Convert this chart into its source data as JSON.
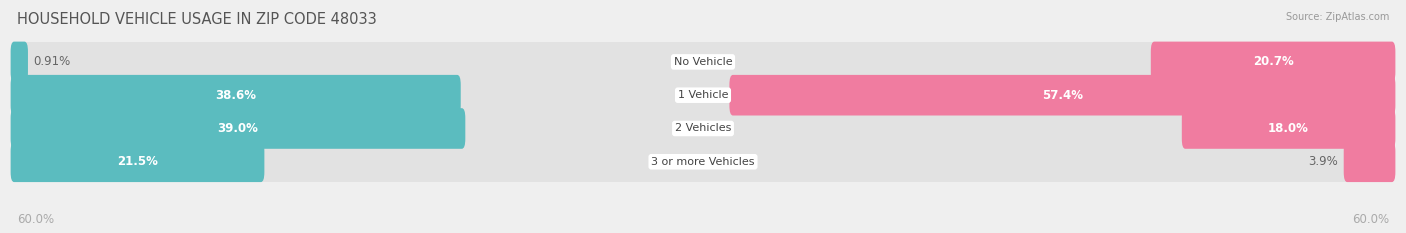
{
  "title": "HOUSEHOLD VEHICLE USAGE IN ZIP CODE 48033",
  "source": "Source: ZipAtlas.com",
  "categories": [
    "No Vehicle",
    "1 Vehicle",
    "2 Vehicles",
    "3 or more Vehicles"
  ],
  "owner_values": [
    0.91,
    38.6,
    39.0,
    21.5
  ],
  "renter_values": [
    20.7,
    57.4,
    18.0,
    3.9
  ],
  "owner_color": "#5bbcbf",
  "renter_color": "#f07ca0",
  "axis_max": 60.0,
  "axis_label_left": "60.0%",
  "axis_label_right": "60.0%",
  "bar_height": 0.62,
  "background_color": "#efefef",
  "row_bg_color": "#e2e2e2",
  "title_fontsize": 10.5,
  "label_fontsize": 8.5,
  "category_fontsize": 8,
  "legend_fontsize": 8.5,
  "owner_label_threshold": 8,
  "renter_label_threshold": 8
}
